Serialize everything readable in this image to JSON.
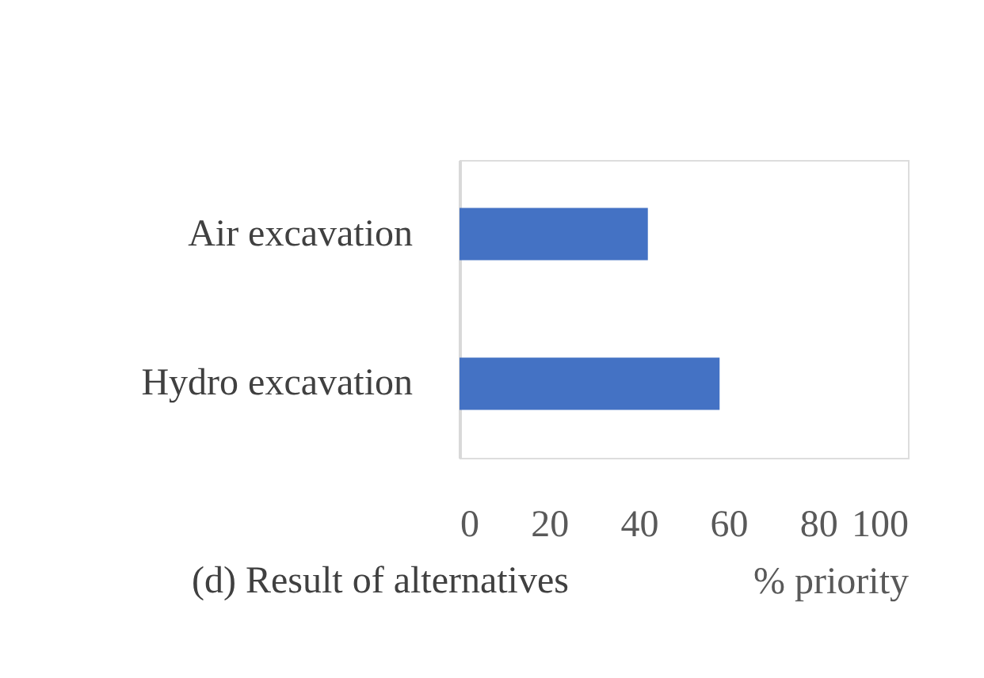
{
  "chart_data": {
    "type": "bar",
    "orientation": "horizontal",
    "categories": [
      "Air excavation",
      "Hydro excavation"
    ],
    "values": [
      42,
      58
    ],
    "color": "#4472c4",
    "xlim": [
      0,
      100
    ],
    "xticks": [
      0,
      20,
      40,
      60,
      80,
      100
    ],
    "xlabel": "% priority",
    "grid": false,
    "annotations": [
      "(d) Result of alternatives"
    ]
  }
}
